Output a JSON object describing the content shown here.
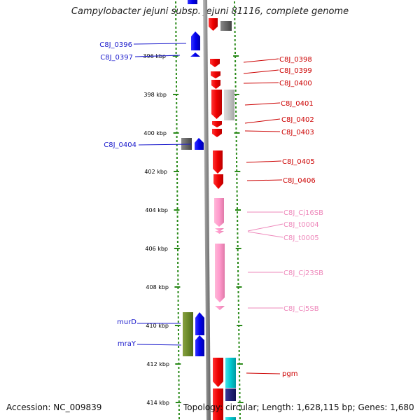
{
  "title": "Campylobacter jejuni subsp. jejuni 81116, complete genome",
  "accession": "Accession: NC_009839",
  "summary": "Topology: circular; Length: 1,628,115 bp; Genes: 1,680",
  "colors": {
    "backbone": "#999999",
    "dots": "#2a8a1a",
    "minus_label": "#1a1acc",
    "plus_label": "#cc0000",
    "rna_label": "#ee88bb"
  },
  "ruler": [
    {
      "label": "396 kbp"
    },
    {
      "label": "398 kbp"
    },
    {
      "label": "400 kbp"
    },
    {
      "label": "402 kbp"
    },
    {
      "label": "404 kbp"
    },
    {
      "label": "406 kbp"
    },
    {
      "label": "408 kbp"
    },
    {
      "label": "410 kbp"
    },
    {
      "label": "412 kbp"
    },
    {
      "label": "414 kbp"
    }
  ],
  "features": {
    "left": [
      {
        "label": "C8J_0396",
        "color": "#1a1acc"
      },
      {
        "label": "C8J_0397",
        "color": "#1a1acc"
      },
      {
        "label": "C8J_0404",
        "color": "#1a1acc"
      },
      {
        "label": "murD",
        "color": "#1a1acc"
      },
      {
        "label": "mraY",
        "color": "#1a1acc"
      }
    ],
    "right": [
      {
        "label": "C8J_0398",
        "color": "#cc0000"
      },
      {
        "label": "C8J_0399",
        "color": "#cc0000"
      },
      {
        "label": "C8J_0400",
        "color": "#cc0000"
      },
      {
        "label": "C8J_0401",
        "color": "#cc0000"
      },
      {
        "label": "C8J_0402",
        "color": "#cc0000"
      },
      {
        "label": "C8J_0403",
        "color": "#cc0000"
      },
      {
        "label": "C8J_0405",
        "color": "#cc0000"
      },
      {
        "label": "C8J_0406",
        "color": "#cc0000"
      },
      {
        "label": "C8J_Cj16SB",
        "color": "#ee88bb"
      },
      {
        "label": "C8J_t0004",
        "color": "#ee88bb"
      },
      {
        "label": "C8J_t0005",
        "color": "#ee88bb"
      },
      {
        "label": "C8J_Cj23SB",
        "color": "#ee88bb"
      },
      {
        "label": "C8J_Cj5SB",
        "color": "#ee88bb"
      },
      {
        "label": "pgm",
        "color": "#cc0000"
      }
    ]
  }
}
